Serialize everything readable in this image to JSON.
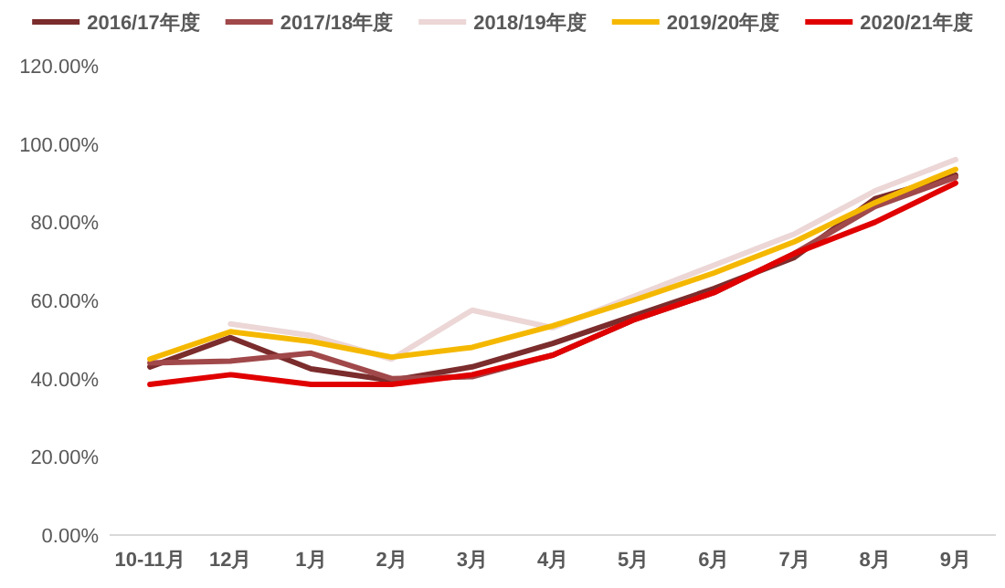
{
  "chart_data": {
    "type": "line",
    "categories": [
      "10-11月",
      "12月",
      "1月",
      "2月",
      "3月",
      "4月",
      "5月",
      "6月",
      "7月",
      "8月",
      "9月"
    ],
    "series": [
      {
        "name": "2016/17年度",
        "color": "#7b2c2c",
        "values": [
          43,
          50.5,
          42.5,
          39.5,
          43,
          49,
          56,
          63,
          71,
          86,
          92
        ]
      },
      {
        "name": "2017/18年度",
        "color": "#a0484a",
        "values": [
          44,
          44.5,
          46.5,
          40,
          40.5,
          46,
          55,
          62,
          72,
          84,
          91.5
        ]
      },
      {
        "name": "2018/19年度",
        "color": "#ecd6d6",
        "values": [
          null,
          54,
          51,
          45,
          57.5,
          53,
          61,
          69,
          77,
          88,
          96
        ]
      },
      {
        "name": "2019/20年度",
        "color": "#f5b800",
        "values": [
          45,
          52,
          49.5,
          45.5,
          48,
          53.5,
          60,
          67,
          75,
          85,
          93.5
        ]
      },
      {
        "name": "2020/21年度",
        "color": "#e00000",
        "values": [
          38.5,
          41,
          38.5,
          38.5,
          41,
          46,
          55,
          62,
          72,
          80,
          90
        ]
      }
    ],
    "ylim": [
      0,
      120
    ],
    "yticks": [
      {
        "value": 0,
        "label": "0.00%"
      },
      {
        "value": 20,
        "label": "20.00%"
      },
      {
        "value": 40,
        "label": "40.00%"
      },
      {
        "value": 60,
        "label": "60.00%"
      },
      {
        "value": 80,
        "label": "80.00%"
      },
      {
        "value": 100,
        "label": "100.00%"
      },
      {
        "value": 120,
        "label": "120.00%"
      }
    ],
    "legend": "top"
  }
}
